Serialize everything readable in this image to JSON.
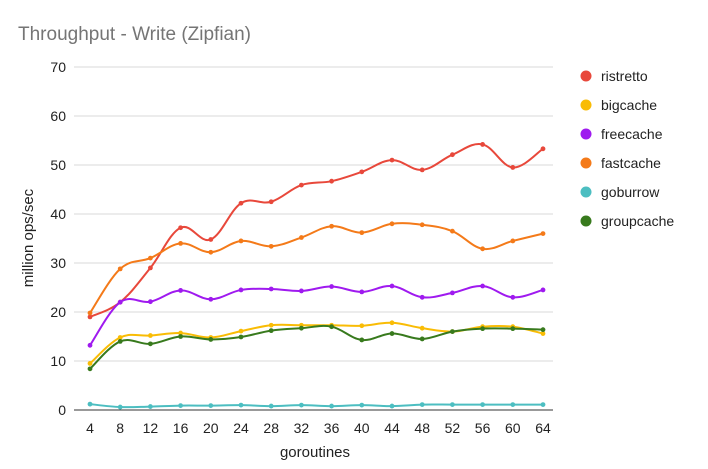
{
  "chart_data": {
    "type": "line",
    "title": "Throughput - Write (Zipfian)",
    "xlabel": "goroutines",
    "ylabel": "million ops/sec",
    "ylim": [
      0,
      70
    ],
    "yticks": [
      0,
      10,
      20,
      30,
      40,
      50,
      60,
      70
    ],
    "categories": [
      "4",
      "8",
      "12",
      "16",
      "20",
      "24",
      "28",
      "32",
      "36",
      "40",
      "44",
      "48",
      "52",
      "56",
      "60",
      "64"
    ],
    "grid": true,
    "legend_position": "right",
    "series": [
      {
        "name": "ristretto",
        "color": "#e8483b",
        "values": [
          19.0,
          22.0,
          29.0,
          37.2,
          34.8,
          42.2,
          42.5,
          45.9,
          46.7,
          48.6,
          51.0,
          49.0,
          52.1,
          54.2,
          49.5,
          53.3
        ]
      },
      {
        "name": "bigcache",
        "color": "#f9bc05",
        "values": [
          9.5,
          14.8,
          15.2,
          15.7,
          14.8,
          16.1,
          17.3,
          17.3,
          17.3,
          17.2,
          17.8,
          16.7,
          16.0,
          17.0,
          17.0,
          15.6
        ]
      },
      {
        "name": "freecache",
        "color": "#9f1aef",
        "values": [
          13.2,
          22.0,
          22.1,
          24.4,
          22.6,
          24.5,
          24.7,
          24.3,
          25.2,
          24.1,
          25.3,
          23.0,
          23.9,
          25.3,
          23.0,
          24.5
        ]
      },
      {
        "name": "fastcache",
        "color": "#f47a19",
        "values": [
          19.8,
          28.8,
          31.0,
          34.0,
          32.2,
          34.5,
          33.4,
          35.2,
          37.5,
          36.2,
          38.0,
          37.8,
          36.5,
          32.9,
          34.5,
          36.0
        ]
      },
      {
        "name": "goburrow",
        "color": "#4cbec1",
        "values": [
          1.2,
          0.6,
          0.7,
          0.9,
          0.9,
          1.0,
          0.8,
          1.0,
          0.8,
          1.0,
          0.8,
          1.1,
          1.1,
          1.1,
          1.1,
          1.1
        ]
      },
      {
        "name": "groupcache",
        "color": "#387a1d",
        "values": [
          8.4,
          14.0,
          13.5,
          15.0,
          14.4,
          14.9,
          16.2,
          16.7,
          17.0,
          14.3,
          15.6,
          14.5,
          16.0,
          16.6,
          16.6,
          16.4
        ]
      }
    ]
  }
}
